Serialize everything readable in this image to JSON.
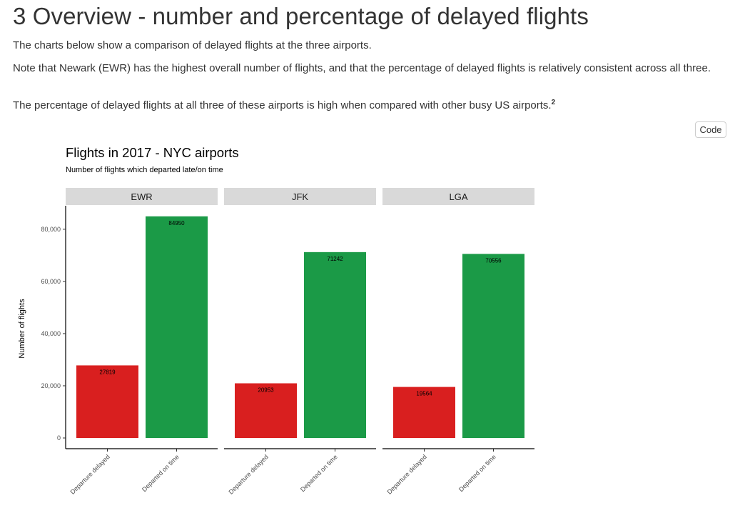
{
  "heading": "3 Overview - number and percentage of delayed flights",
  "paragraphs": {
    "p1": "The charts below show a comparison of delayed flights at the three airports.",
    "p2": "Note that Newark (EWR) has the highest overall number of flights, and that the percentage of delayed flights is relatively consistent across all three.",
    "p3": "The percentage of delayed flights at all three of these airports is high when compared with other busy US airports.",
    "p3_footnote": "2"
  },
  "code_button": "Code",
  "colors": {
    "delayed": "#d91f1f",
    "on_time": "#1b9a47",
    "strip": "#d9d9d9"
  },
  "chart_data": {
    "type": "bar",
    "title": "Flights in 2017 - NYC airports",
    "subtitle": "Number of flights which departed late/on time",
    "ylabel": "Number of flights",
    "xlabel": "",
    "ylim": [
      0,
      89000
    ],
    "yticks": [
      0,
      20000,
      40000,
      60000,
      80000
    ],
    "ytick_labels": [
      "0",
      "20,000",
      "40,000",
      "60,000",
      "80,000"
    ],
    "grid": false,
    "categories": [
      "Departure delayed",
      "Departed on time"
    ],
    "facets": [
      {
        "name": "EWR",
        "values": [
          27819,
          84950
        ],
        "labels": [
          "27819",
          "84950"
        ]
      },
      {
        "name": "JFK",
        "values": [
          20953,
          71242
        ],
        "labels": [
          "20953",
          "71242"
        ]
      },
      {
        "name": "LGA",
        "values": [
          19564,
          70556
        ],
        "labels": [
          "19564",
          "70556"
        ]
      }
    ]
  }
}
